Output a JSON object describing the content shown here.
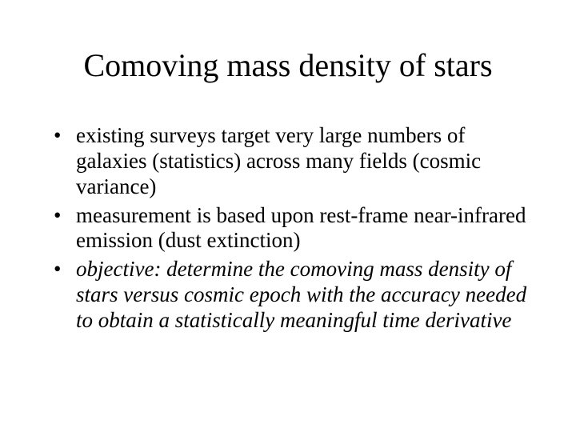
{
  "title": "Comoving mass density of stars",
  "bullets": [
    {
      "text": "existing surveys target very large numbers of galaxies (statistics) across many fields (cosmic variance)",
      "italic": false
    },
    {
      "text": "measurement is based upon rest-frame near-infrared emission (dust extinction)",
      "italic": false
    },
    {
      "text": "objective:  determine the comoving mass density of stars versus cosmic epoch with the accuracy needed to obtain a statistically meaningful time derivative",
      "italic": true
    }
  ],
  "style": {
    "background_color": "#ffffff",
    "text_color": "#000000",
    "font_family": "Times New Roman",
    "title_fontsize": 40,
    "body_fontsize": 27,
    "slide_width": 720,
    "slide_height": 540
  }
}
